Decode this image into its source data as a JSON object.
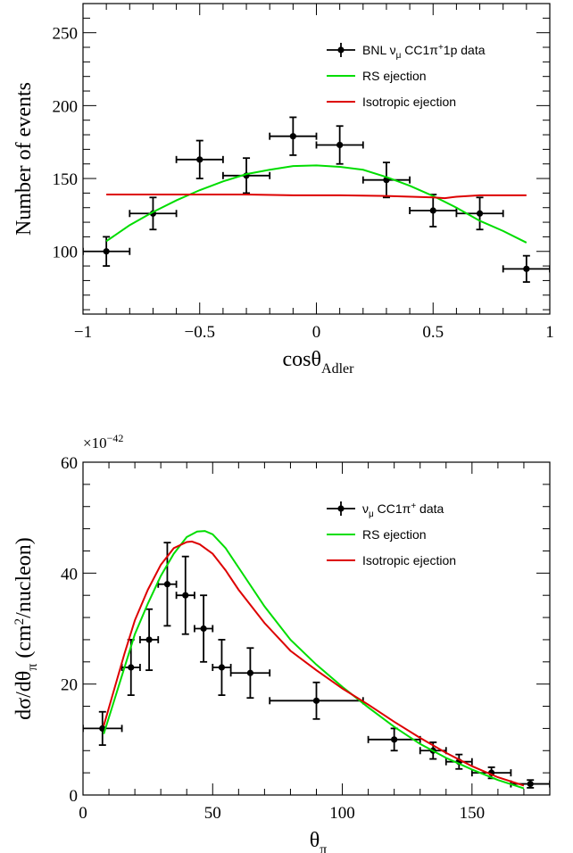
{
  "chart_data": [
    {
      "type": "scatter",
      "xlabel": "cosθ",
      "xlabel_sub": "Adler",
      "ylabel": "Number of events",
      "xlim": [
        -1,
        1
      ],
      "ylim": [
        57,
        270
      ],
      "x_ticks": [
        -1,
        -0.5,
        0,
        0.5,
        1
      ],
      "x_tick_labels": [
        "−1",
        "−0.5",
        "0",
        "0.5",
        "1"
      ],
      "y_ticks": [
        100,
        150,
        200,
        250
      ],
      "y_tick_labels": [
        "100",
        "150",
        "200",
        "250"
      ],
      "grid": false,
      "legend_position": "top-right",
      "series": [
        {
          "name": "BNL ν",
          "name_sub": "μ",
          "name_rest": " CC1π",
          "name_sup": "+",
          "name_tail": "1p data",
          "kind": "points_errorbars",
          "color": "#000000",
          "x": [
            -0.9,
            -0.7,
            -0.5,
            -0.3,
            -0.1,
            0.1,
            0.3,
            0.5,
            0.7,
            0.9
          ],
          "xerr": [
            0.1,
            0.1,
            0.1,
            0.1,
            0.1,
            0.1,
            0.1,
            0.1,
            0.1,
            0.1
          ],
          "y": [
            100,
            126,
            163,
            152,
            179,
            173,
            149,
            128,
            126,
            88
          ],
          "yerr": [
            10,
            11,
            13,
            12,
            13,
            13,
            12,
            11,
            11,
            9
          ]
        },
        {
          "name": "RS ejection",
          "kind": "line",
          "color": "#00dd00",
          "x": [
            -0.9,
            -0.8,
            -0.7,
            -0.6,
            -0.5,
            -0.4,
            -0.3,
            -0.2,
            -0.1,
            0.0,
            0.1,
            0.2,
            0.3,
            0.4,
            0.5,
            0.6,
            0.7,
            0.8,
            0.9
          ],
          "y": [
            107,
            118,
            127,
            135,
            142,
            148,
            153,
            156,
            158.5,
            159,
            158,
            156,
            151,
            145,
            138,
            130,
            121,
            114,
            106
          ]
        },
        {
          "name": "Isotropic ejection",
          "kind": "line",
          "color": "#dd0000",
          "x": [
            -0.9,
            -0.7,
            -0.5,
            -0.3,
            -0.1,
            0.1,
            0.3,
            0.5,
            0.55,
            0.6,
            0.7,
            0.9
          ],
          "y": [
            139,
            139,
            139,
            139,
            138.5,
            138.5,
            138,
            137,
            136.5,
            137.5,
            138.5,
            138.5
          ]
        }
      ]
    },
    {
      "type": "scatter",
      "xlabel": "θ",
      "xlabel_sub": "π",
      "ylabel": "dσ/dθ",
      "ylabel_sub": "π",
      "ylabel_rest": " (cm",
      "ylabel_sup": "2",
      "ylabel_tail": "/nucleon)",
      "y_multiplier": "×10",
      "y_multiplier_exp": "−42",
      "xlim": [
        0,
        180
      ],
      "ylim": [
        0,
        60
      ],
      "x_ticks": [
        0,
        50,
        100,
        150
      ],
      "x_tick_labels": [
        "0",
        "50",
        "100",
        "150"
      ],
      "y_ticks": [
        0,
        20,
        40,
        60
      ],
      "y_tick_labels": [
        "0",
        "20",
        "40",
        "60"
      ],
      "grid": false,
      "legend_position": "top-right",
      "series": [
        {
          "name": "ν",
          "name_sub": "μ",
          "name_rest": " CC1π",
          "name_sup": "+",
          "name_tail": " data",
          "kind": "points_errorbars",
          "color": "#000000",
          "x": [
            7.5,
            18.5,
            25.5,
            32.5,
            39.5,
            46.5,
            53.5,
            64.5,
            90,
            120,
            135,
            145,
            157.5,
            172.5
          ],
          "xerr": [
            7.5,
            3.5,
            3.5,
            3.5,
            3.5,
            3.5,
            3.5,
            7.5,
            18,
            10,
            5,
            5,
            7.5,
            7.5
          ],
          "y": [
            12,
            23,
            28,
            38,
            36,
            30,
            23,
            22,
            17,
            10,
            8,
            6,
            4,
            2
          ],
          "yerr": [
            3,
            5,
            5.5,
            7.5,
            7,
            6,
            5,
            4.5,
            3.3,
            2,
            1.5,
            1.3,
            1,
            0.7
          ]
        },
        {
          "name": "RS ejection",
          "kind": "line",
          "color": "#00dd00",
          "x": [
            8,
            12,
            16,
            20,
            25,
            30,
            35,
            40,
            44,
            47,
            50,
            55,
            60,
            70,
            80,
            90,
            100,
            110,
            120,
            130,
            140,
            150,
            160,
            170
          ],
          "y": [
            11,
            17,
            23,
            29,
            34.5,
            39.5,
            43.5,
            46.5,
            47.5,
            47.6,
            47,
            44.5,
            41,
            34,
            28,
            23.5,
            19.5,
            15.8,
            12.3,
            9.2,
            6.7,
            4.6,
            2.7,
            1.2
          ]
        },
        {
          "name": "Isotropic ejection",
          "kind": "line",
          "color": "#dd0000",
          "x": [
            8,
            12,
            16,
            20,
            25,
            30,
            35,
            40,
            42,
            45,
            50,
            55,
            60,
            70,
            80,
            90,
            100,
            110,
            120,
            130,
            140,
            150,
            160,
            170
          ],
          "y": [
            12.5,
            19,
            25.5,
            31.5,
            37,
            41.5,
            44.5,
            45.6,
            45.7,
            45.2,
            43.5,
            40.5,
            37,
            31,
            26,
            22.5,
            19.2,
            16.3,
            13.2,
            10.3,
            7.6,
            5.2,
            3.2,
            1.7
          ]
        }
      ]
    }
  ]
}
